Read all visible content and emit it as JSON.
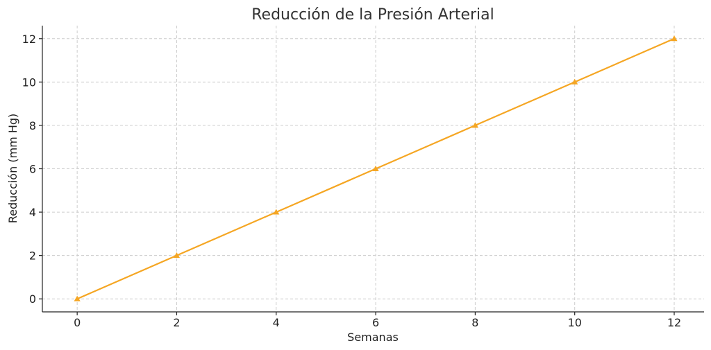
{
  "chart_data": {
    "type": "line",
    "title": "Reducción de la Presión Arterial",
    "xlabel": "Semanas",
    "ylabel": "Reducción (mm Hg)",
    "x": [
      0,
      2,
      4,
      6,
      8,
      10,
      12
    ],
    "series": [
      {
        "values": [
          0,
          2,
          4,
          6,
          8,
          10,
          12
        ],
        "color": "#f5a623",
        "marker": "triangle"
      }
    ],
    "xlim": [
      -0.7,
      12.6
    ],
    "ylim": [
      -0.6,
      12.6
    ],
    "xticks": [
      0,
      2,
      4,
      6,
      8,
      10,
      12
    ],
    "yticks": [
      0,
      2,
      4,
      6,
      8,
      10,
      12
    ],
    "grid": true
  }
}
